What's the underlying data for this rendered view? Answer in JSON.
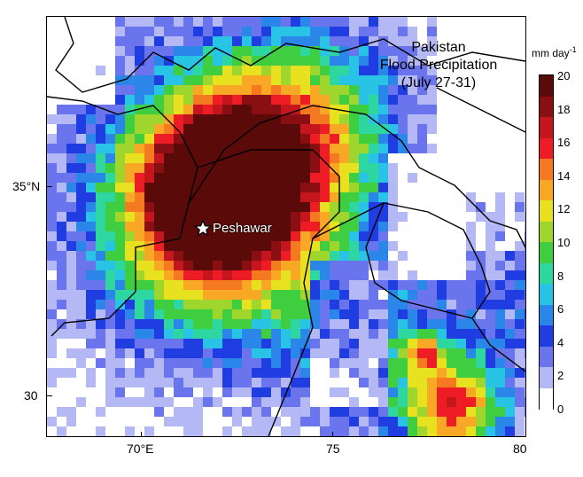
{
  "title": {
    "line1": "Pakistan",
    "line2": "Flood Precipitation",
    "line3": "(July 27-31)"
  },
  "legend": {
    "units": "mm day",
    "units_exp": "-1",
    "labels": [
      "20",
      "18",
      "16",
      "14",
      "12",
      "10",
      "8",
      "6",
      "4",
      "2",
      "0"
    ],
    "colors": [
      "#5a0a08",
      "#8a0f12",
      "#c4161c",
      "#ee1c24",
      "#f47920",
      "#f9a825",
      "#e8e11f",
      "#9fd62d",
      "#3fce3f",
      "#2fd7a0",
      "#29c3e6",
      "#2a86e9",
      "#1f3de0",
      "#6a74ec",
      "#b4b8f4",
      "#ffffff"
    ]
  },
  "axes": {
    "x_ticks": [
      "70°E",
      "75",
      "80"
    ],
    "y_ticks": [
      "35°N",
      "30"
    ]
  },
  "city": {
    "name": "Peshawar",
    "marker": "star-icon"
  },
  "chart_data": {
    "type": "heatmap",
    "title": "Pakistan Flood Precipitation (July 27-31)",
    "units": "mm day-1",
    "x_ticks": [
      70,
      75,
      80
    ],
    "y_ticks": [
      35,
      30
    ],
    "colorbar_range": [
      0,
      20
    ],
    "colorbar_ticks": [
      0,
      2,
      4,
      6,
      8,
      10,
      12,
      14,
      16,
      18,
      20
    ],
    "xlim": [
      67.8,
      80
    ],
    "ylim": [
      28.9,
      38.9
    ],
    "annotation": {
      "label": "Peshawar",
      "lon": 71.6,
      "lat": 34.0
    }
  }
}
